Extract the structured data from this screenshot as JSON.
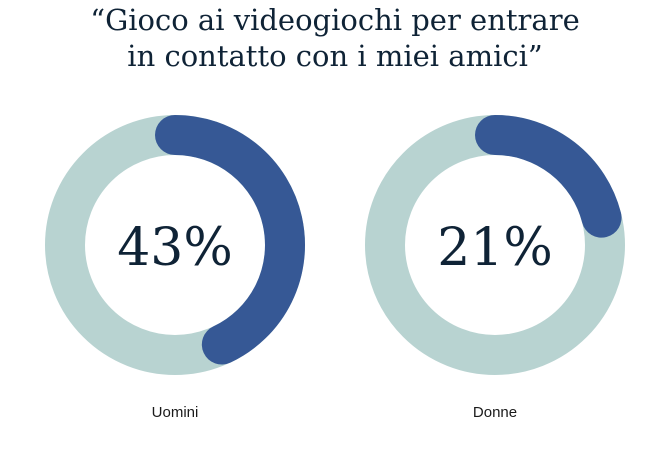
{
  "chart_data": {
    "type": "donut",
    "title_lines": [
      "“Gioco ai videogiochi per entrare",
      "in contatto con i miei amici”"
    ],
    "charts": [
      {
        "label": "Uomini",
        "value": 43,
        "value_label": "43%"
      },
      {
        "label": "Donne",
        "value": 21,
        "value_label": "21%"
      }
    ],
    "colors": {
      "value": "#365895",
      "track": "#b8d3d1",
      "text": "#0f2336"
    }
  }
}
